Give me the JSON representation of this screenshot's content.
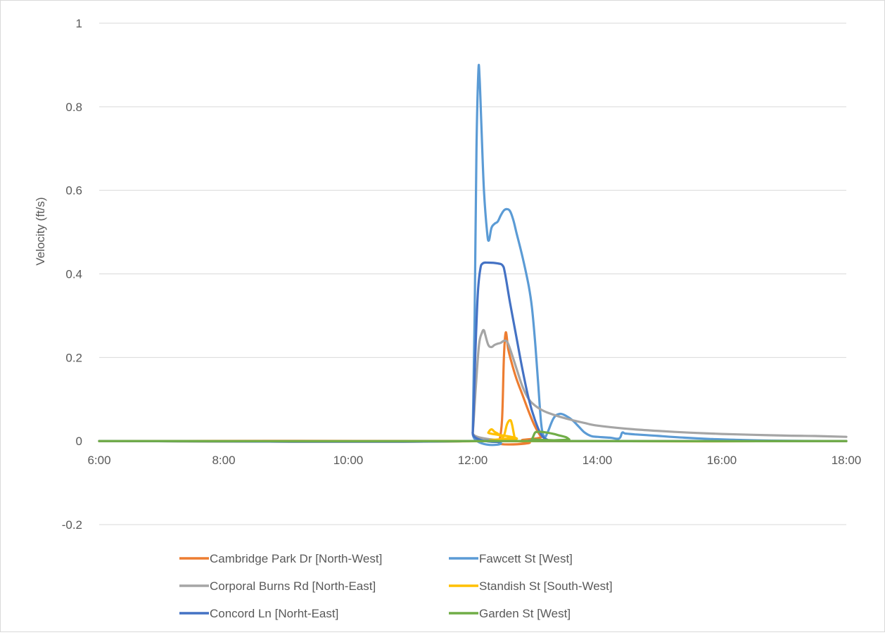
{
  "chart_data": {
    "type": "line",
    "title": "",
    "xlabel": "",
    "ylabel": "Velocity (ft/s)",
    "x_unit": "hours",
    "xlim": [
      6,
      18
    ],
    "ylim": [
      -0.2,
      1
    ],
    "x_tick_values": [
      6,
      8,
      10,
      12,
      14,
      16,
      18
    ],
    "x_tick_labels": [
      "6:00",
      "8:00",
      "10:00",
      "12:00",
      "14:00",
      "16:00",
      "18:00"
    ],
    "y_tick_values": [
      -0.2,
      0,
      0.2,
      0.4,
      0.6,
      0.8,
      1
    ],
    "y_tick_labels": [
      "-0.2",
      "0",
      "0.2",
      "0.4",
      "0.6",
      "0.8",
      "1"
    ],
    "grid": true,
    "legend_position": "bottom",
    "series": [
      {
        "name": "Cambridge Park Dr [North-West]",
        "color": "#ED7D31",
        "points": [
          [
            6,
            0
          ],
          [
            12.4,
            0
          ],
          [
            12.42,
            -0.005
          ],
          [
            12.47,
            0.05
          ],
          [
            12.5,
            0.2
          ],
          [
            12.53,
            0.26
          ],
          [
            12.57,
            0.22
          ],
          [
            12.62,
            0.19
          ],
          [
            12.7,
            0.15
          ],
          [
            12.8,
            0.11
          ],
          [
            12.9,
            0.07
          ],
          [
            13.0,
            0.035
          ],
          [
            13.1,
            0.01
          ],
          [
            13.2,
            0
          ],
          [
            18,
            0
          ]
        ]
      },
      {
        "name": "Fawcett St [West]",
        "color": "#5B9BD5",
        "points": [
          [
            6,
            0
          ],
          [
            11.97,
            0
          ],
          [
            12.0,
            0.02
          ],
          [
            12.03,
            0.3
          ],
          [
            12.06,
            0.7
          ],
          [
            12.09,
            0.885
          ],
          [
            12.11,
            0.87
          ],
          [
            12.14,
            0.75
          ],
          [
            12.18,
            0.6
          ],
          [
            12.23,
            0.5
          ],
          [
            12.26,
            0.48
          ],
          [
            12.3,
            0.51
          ],
          [
            12.35,
            0.52
          ],
          [
            12.4,
            0.525
          ],
          [
            12.45,
            0.54
          ],
          [
            12.5,
            0.552
          ],
          [
            12.55,
            0.555
          ],
          [
            12.6,
            0.55
          ],
          [
            12.65,
            0.53
          ],
          [
            12.7,
            0.5
          ],
          [
            12.8,
            0.44
          ],
          [
            12.9,
            0.37
          ],
          [
            12.95,
            0.32
          ],
          [
            13.0,
            0.24
          ],
          [
            13.05,
            0.14
          ],
          [
            13.1,
            0.04
          ],
          [
            13.15,
            0.01
          ],
          [
            13.2,
            0.02
          ],
          [
            13.3,
            0.055
          ],
          [
            13.4,
            0.065
          ],
          [
            13.5,
            0.06
          ],
          [
            13.6,
            0.05
          ],
          [
            13.7,
            0.035
          ],
          [
            13.8,
            0.02
          ],
          [
            13.9,
            0.012
          ],
          [
            14.0,
            0.01
          ],
          [
            14.2,
            0.008
          ],
          [
            14.35,
            0.006
          ],
          [
            14.4,
            0.02
          ],
          [
            14.45,
            0.018
          ],
          [
            14.6,
            0.016
          ],
          [
            14.8,
            0.014
          ],
          [
            15.0,
            0.012
          ],
          [
            15.4,
            0.008
          ],
          [
            15.8,
            0.005
          ],
          [
            16.2,
            0.003
          ],
          [
            16.8,
            0.001
          ],
          [
            18,
            0
          ]
        ]
      },
      {
        "name": "Corporal Burns Rd [North-East]",
        "color": "#A5A5A5",
        "points": [
          [
            6,
            0
          ],
          [
            11.97,
            0
          ],
          [
            12.0,
            0.02
          ],
          [
            12.05,
            0.13
          ],
          [
            12.1,
            0.23
          ],
          [
            12.15,
            0.26
          ],
          [
            12.18,
            0.265
          ],
          [
            12.2,
            0.255
          ],
          [
            12.25,
            0.23
          ],
          [
            12.3,
            0.225
          ],
          [
            12.35,
            0.23
          ],
          [
            12.4,
            0.233
          ],
          [
            12.45,
            0.235
          ],
          [
            12.5,
            0.24
          ],
          [
            12.55,
            0.238
          ],
          [
            12.6,
            0.22
          ],
          [
            12.7,
            0.175
          ],
          [
            12.8,
            0.13
          ],
          [
            12.9,
            0.1
          ],
          [
            13.0,
            0.085
          ],
          [
            13.1,
            0.075
          ],
          [
            13.2,
            0.068
          ],
          [
            13.4,
            0.058
          ],
          [
            13.6,
            0.05
          ],
          [
            13.8,
            0.043
          ],
          [
            14.0,
            0.037
          ],
          [
            14.5,
            0.029
          ],
          [
            15.0,
            0.024
          ],
          [
            15.5,
            0.02
          ],
          [
            16.0,
            0.017
          ],
          [
            16.5,
            0.015
          ],
          [
            17.0,
            0.013
          ],
          [
            17.5,
            0.012
          ],
          [
            18,
            0.01
          ]
        ]
      },
      {
        "name": "Standish St [South-West]",
        "color": "#FFC000",
        "points": [
          [
            6,
            0
          ],
          [
            12.2,
            0
          ],
          [
            12.25,
            0.02
          ],
          [
            12.3,
            0.028
          ],
          [
            12.35,
            0.022
          ],
          [
            12.4,
            0.018
          ],
          [
            12.45,
            0.012
          ],
          [
            12.5,
            0.012
          ],
          [
            12.55,
            0.04
          ],
          [
            12.6,
            0.05
          ],
          [
            12.63,
            0.04
          ],
          [
            12.67,
            0.01
          ],
          [
            12.7,
            0
          ],
          [
            18,
            0
          ]
        ]
      },
      {
        "name": "Concord Ln [Norht-East]",
        "color": "#4472C4",
        "points": [
          [
            6,
            0
          ],
          [
            11.95,
            0
          ],
          [
            12.0,
            0.02
          ],
          [
            12.04,
            0.2
          ],
          [
            12.08,
            0.35
          ],
          [
            12.12,
            0.41
          ],
          [
            12.16,
            0.425
          ],
          [
            12.25,
            0.427
          ],
          [
            12.4,
            0.425
          ],
          [
            12.48,
            0.42
          ],
          [
            12.52,
            0.4
          ],
          [
            12.6,
            0.33
          ],
          [
            12.7,
            0.25
          ],
          [
            12.8,
            0.17
          ],
          [
            12.9,
            0.1
          ],
          [
            13.0,
            0.05
          ],
          [
            13.1,
            0.015
          ],
          [
            13.2,
            0.003
          ],
          [
            13.3,
            0
          ],
          [
            18,
            0
          ]
        ]
      },
      {
        "name": "Garden St [West]",
        "color": "#70AD47",
        "points": [
          [
            6,
            0
          ],
          [
            12.88,
            0
          ],
          [
            12.95,
            0.005
          ],
          [
            13.0,
            0.02
          ],
          [
            13.05,
            0.022
          ],
          [
            13.1,
            0.022
          ],
          [
            13.2,
            0.02
          ],
          [
            13.3,
            0.017
          ],
          [
            13.4,
            0.013
          ],
          [
            13.5,
            0.009
          ],
          [
            13.55,
            0.004
          ],
          [
            13.6,
            0
          ],
          [
            18,
            0
          ]
        ]
      }
    ]
  }
}
